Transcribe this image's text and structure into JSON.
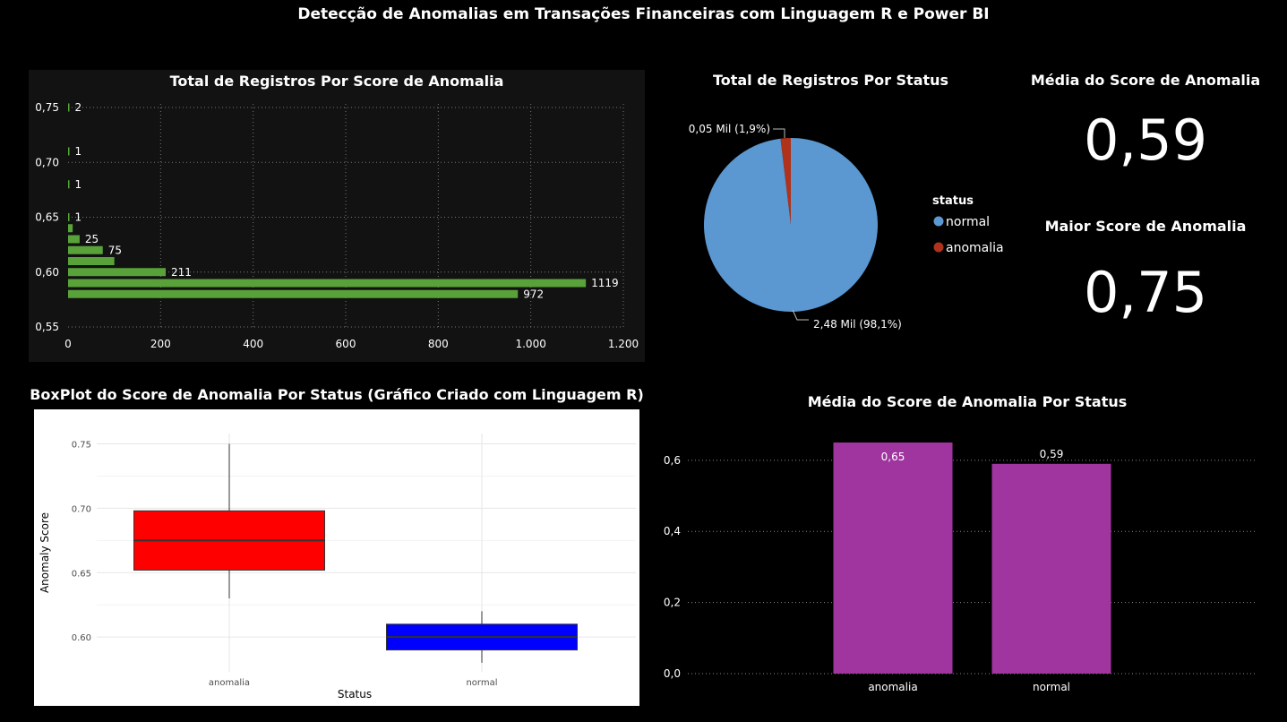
{
  "title": "Detecção de Anomalias em Transações Financeiras com Linguagem R e Power BI",
  "colors": {
    "green_bar": "#59a23a",
    "pie_normal": "#5b97d1",
    "pie_anomalia": "#b0321a",
    "purple_bar": "#a035a0",
    "box_anomalia": "#ff0000",
    "box_normal": "#0000ff"
  },
  "kpis": {
    "media_title": "Média do Score de Anomalia",
    "media_value": "0,59",
    "maior_title": "Maior Score de Anomalia",
    "maior_value": "0,75"
  },
  "chart_data": [
    {
      "type": "bar",
      "orientation": "horizontal",
      "title": "Total de Registros Por Score de Anomalia",
      "y": [
        0.58,
        0.59,
        0.6,
        0.61,
        0.62,
        0.63,
        0.64,
        0.65,
        0.68,
        0.71,
        0.75
      ],
      "values": [
        972,
        1119,
        211,
        100,
        75,
        25,
        10,
        1,
        1,
        1,
        2
      ],
      "labels": [
        "972",
        "1119",
        "211",
        "",
        "75",
        "25",
        "",
        "1",
        "1",
        "1",
        "2"
      ],
      "ylim": [
        0.55,
        0.75
      ],
      "yticks": [
        "0,55",
        "0,60",
        "0,65",
        "0,70",
        "0,75"
      ],
      "xlim": [
        0,
        1200
      ],
      "xticks": [
        "0",
        "200",
        "400",
        "600",
        "800",
        "1.000",
        "1.200"
      ],
      "grid": true
    },
    {
      "type": "pie",
      "title": "Total de Registros Por Status",
      "legend_title": "status",
      "legend_position": "right",
      "slices": [
        {
          "name": "normal",
          "value": 2480,
          "percent": 98.1,
          "label": "2,48 Mil (98,1%)"
        },
        {
          "name": "anomalia",
          "value": 50,
          "percent": 1.9,
          "label": "0,05 Mil (1,9%)"
        }
      ]
    },
    {
      "type": "boxplot",
      "title": "BoxPlot do Score de Anomalia Por Status (Gráfico Criado com Linguagem R)",
      "xlabel": "Status",
      "ylabel": "Anomaly Score",
      "yticks": [
        "0.60",
        "0.65",
        "0.70",
        "0.75"
      ],
      "ylim": [
        0.573,
        0.758
      ],
      "boxes": [
        {
          "name": "anomalia",
          "min": 0.63,
          "q1": 0.652,
          "median": 0.675,
          "q3": 0.698,
          "max": 0.75
        },
        {
          "name": "normal",
          "min": 0.58,
          "q1": 0.59,
          "median": 0.6,
          "q3": 0.61,
          "max": 0.62
        }
      ]
    },
    {
      "type": "bar",
      "title": "Média do Score de Anomalia Por Status",
      "categories": [
        "anomalia",
        "normal"
      ],
      "values": [
        0.65,
        0.59
      ],
      "labels": [
        "0,65",
        "0,59"
      ],
      "ylim": [
        0,
        0.65
      ],
      "yticks": [
        "0,0",
        "0,2",
        "0,4",
        "0,6"
      ],
      "grid": true
    }
  ]
}
